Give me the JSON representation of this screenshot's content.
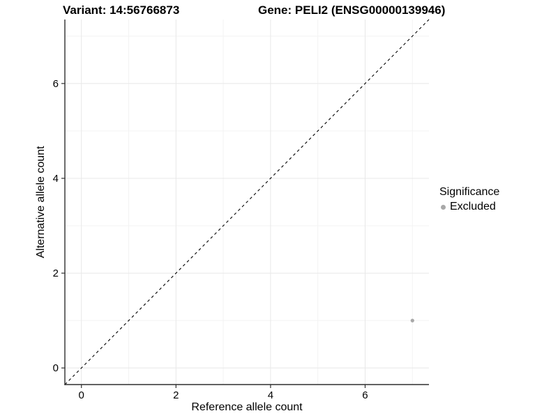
{
  "chart_data": {
    "type": "scatter",
    "title_left": "Variant: 14:56766873",
    "title_right": "Gene: PELI2 (ENSG00000139946)",
    "xlabel": "Reference allele count",
    "ylabel": "Alternative allele count",
    "xlim": [
      -0.35,
      7.35
    ],
    "ylim": [
      -0.35,
      7.35
    ],
    "major_ticks": [
      0,
      2,
      4,
      6
    ],
    "minor_ticks": [
      1,
      3,
      5,
      7
    ],
    "tick_labels": [
      "0",
      "2",
      "4",
      "6"
    ],
    "grid": {
      "major_color": "#e8e8e8",
      "minor_color": "#f3f3f3",
      "grid_on": true
    },
    "axis_color": "#2e2e2e",
    "identity_line": {
      "style": "dashed",
      "color": "#000000",
      "from": -0.35,
      "to": 7.35
    },
    "series": [
      {
        "name": "Excluded",
        "color": "#a8a8a8",
        "points": [
          {
            "x": 7,
            "y": 1
          }
        ]
      }
    ],
    "legend": {
      "position": "right",
      "title": "Significance",
      "items": [
        {
          "label": "Excluded",
          "color": "#a8a8a8"
        }
      ]
    }
  }
}
